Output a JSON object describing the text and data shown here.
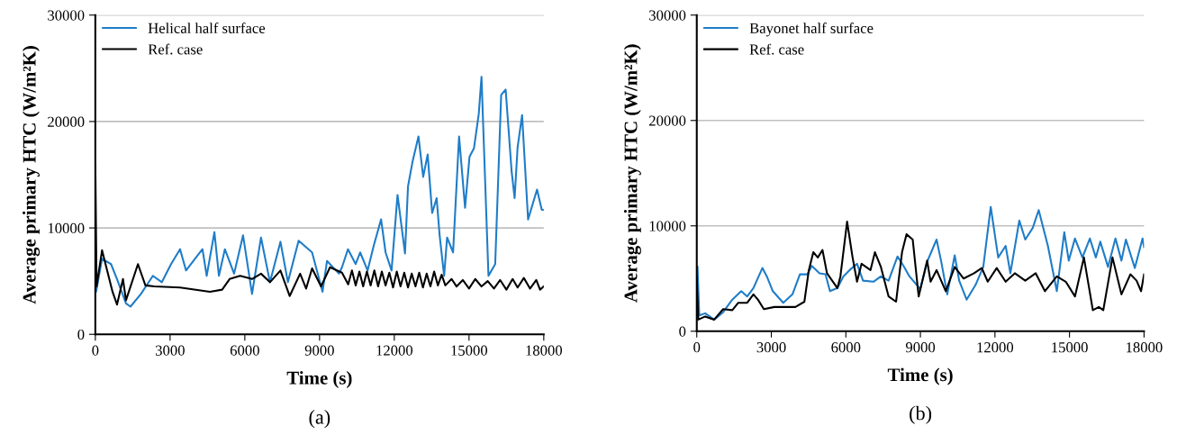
{
  "chart_data": [
    {
      "type": "line",
      "xlabel": "Time (s)",
      "ylabel": "Average primary HTC (W/m²K)",
      "annotations": [
        "(a)"
      ],
      "xlim": [
        0,
        18000
      ],
      "ylim": [
        0,
        30000
      ],
      "xticks": [
        0,
        3000,
        6000,
        9000,
        12000,
        15000,
        18000
      ],
      "yticks": [
        0,
        10000,
        20000,
        30000
      ],
      "grid": "y",
      "legend": "top left",
      "series": [
        {
          "name": "Helical half surface",
          "color": "#1f7dc8",
          "x": [
            0,
            30,
            270,
            630,
            870,
            1230,
            1410,
            1830,
            2310,
            2670,
            3040,
            3400,
            3640,
            4000,
            4300,
            4470,
            4780,
            4960,
            5200,
            5570,
            5930,
            6290,
            6650,
            7010,
            7430,
            7730,
            8160,
            8700,
            9120,
            9300,
            9780,
            9900,
            10140,
            10450,
            10630,
            10930,
            11170,
            11470,
            11650,
            11890,
            12130,
            12430,
            12550,
            12730,
            12970,
            13160,
            13340,
            13520,
            13700,
            13820,
            14000,
            14120,
            14360,
            14600,
            14840,
            15020,
            15200,
            15390,
            15500,
            15780,
            16050,
            16290,
            16470,
            16710,
            16830,
            16950,
            17130,
            17370,
            17730,
            17920,
            18000
          ],
          "values": [
            5000,
            4000,
            7100,
            6600,
            5200,
            2900,
            2600,
            3800,
            5500,
            4900,
            6600,
            8000,
            6000,
            7100,
            8000,
            5500,
            9600,
            5500,
            8000,
            5700,
            9300,
            3800,
            9100,
            4900,
            8700,
            4900,
            8800,
            7700,
            4000,
            6900,
            5700,
            6300,
            8000,
            6600,
            7700,
            6000,
            8300,
            10800,
            7700,
            6000,
            13100,
            7600,
            13900,
            16200,
            18600,
            14800,
            16900,
            11400,
            12800,
            9300,
            5500,
            9100,
            7700,
            18600,
            11900,
            16700,
            17500,
            20700,
            24200,
            5500,
            6600,
            22500,
            23000,
            15300,
            12800,
            17600,
            20600,
            10800,
            13600,
            11700,
            11700
          ]
        },
        {
          "name": "Ref. case",
          "color": "#000000",
          "x": [
            0,
            50,
            270,
            690,
            870,
            1110,
            1230,
            1710,
            2010,
            2370,
            3400,
            4600,
            5090,
            5390,
            5810,
            6290,
            6650,
            7010,
            7430,
            7800,
            8220,
            8460,
            8700,
            9060,
            9420,
            9900,
            10150,
            10300,
            10450,
            10600,
            10750,
            10900,
            11050,
            11200,
            11350,
            11500,
            11650,
            11800,
            11950,
            12100,
            12250,
            12400,
            12550,
            12700,
            12850,
            13000,
            13150,
            13300,
            13450,
            13600,
            13750,
            13900,
            14050,
            14300,
            14500,
            14750,
            15000,
            15250,
            15500,
            15750,
            16000,
            16250,
            16500,
            16750,
            16950,
            17200,
            17450,
            17700,
            17850,
            18000
          ],
          "values": [
            16000,
            4500,
            7900,
            4000,
            2800,
            5200,
            3200,
            6600,
            4600,
            4500,
            4400,
            4000,
            4200,
            5200,
            5500,
            5200,
            5700,
            4900,
            6000,
            3600,
            5700,
            4300,
            6200,
            4500,
            6300,
            5800,
            4700,
            6000,
            4600,
            5900,
            4500,
            5900,
            4600,
            6000,
            4500,
            5900,
            4600,
            5800,
            4400,
            5900,
            4500,
            5800,
            4400,
            5700,
            4500,
            5800,
            4400,
            5700,
            4500,
            5900,
            4600,
            5600,
            4600,
            5200,
            4500,
            5100,
            4300,
            5200,
            4500,
            5000,
            4300,
            5100,
            4200,
            5200,
            4400,
            5300,
            4300,
            5100,
            4200,
            4500
          ]
        }
      ]
    },
    {
      "type": "line",
      "xlabel": "Time (s)",
      "ylabel": "Average primary HTC (W/m²K)",
      "annotations": [
        "(b)"
      ],
      "xlim": [
        0,
        18000
      ],
      "ylim": [
        0,
        30000
      ],
      "xticks": [
        0,
        3000,
        6000,
        9000,
        12000,
        15000,
        18000
      ],
      "yticks": [
        0,
        10000,
        20000,
        30000
      ],
      "grid": "y",
      "legend": "top left",
      "series": [
        {
          "name": "Bayonet half surface",
          "color": "#1f7dc8",
          "x": [
            30,
            100,
            340,
            700,
            1060,
            1430,
            1790,
            2030,
            2280,
            2640,
            2820,
            3060,
            3480,
            3850,
            4150,
            4450,
            4630,
            4940,
            5180,
            5360,
            5660,
            5900,
            6150,
            6450,
            6690,
            7110,
            7410,
            7720,
            8080,
            8320,
            8560,
            8990,
            9290,
            9650,
            9830,
            10080,
            10380,
            10560,
            10860,
            11220,
            11530,
            11830,
            12130,
            12430,
            12620,
            12980,
            13220,
            13520,
            13760,
            14130,
            14490,
            14790,
            14970,
            15220,
            15520,
            15820,
            16060,
            16240,
            16550,
            16850,
            17090,
            17270,
            17630,
            17940,
            18000
          ],
          "values": [
            6100,
            1500,
            1700,
            1100,
            1800,
            3000,
            3800,
            3300,
            4100,
            6000,
            5200,
            3800,
            2700,
            3500,
            5400,
            5400,
            6200,
            5500,
            5400,
            3800,
            4100,
            5200,
            5800,
            6400,
            4800,
            4700,
            5200,
            4800,
            7100,
            6200,
            5200,
            4000,
            6700,
            8700,
            6700,
            3500,
            7200,
            4800,
            3000,
            4400,
            6100,
            11800,
            7000,
            8100,
            5500,
            10500,
            8700,
            9800,
            11500,
            8100,
            3800,
            9400,
            6700,
            8800,
            7000,
            8800,
            7000,
            8500,
            6100,
            8800,
            6700,
            8700,
            6000,
            8800,
            8000
          ]
        },
        {
          "name": "Ref. case",
          "color": "#000000",
          "x": [
            0,
            60,
            340,
            700,
            1060,
            1430,
            1670,
            2030,
            2280,
            2460,
            2700,
            3120,
            3970,
            4330,
            4510,
            4690,
            4870,
            5060,
            5240,
            5480,
            5660,
            5780,
            6050,
            6270,
            6450,
            6630,
            6990,
            7170,
            7410,
            7720,
            8020,
            8260,
            8440,
            8690,
            8930,
            9270,
            9410,
            9650,
            10020,
            10380,
            10740,
            11160,
            11470,
            11710,
            12070,
            12430,
            12800,
            13220,
            13640,
            14010,
            14490,
            14850,
            15220,
            15580,
            15940,
            16180,
            16360,
            16730,
            17090,
            17450,
            17700,
            17880,
            18000
          ],
          "values": [
            5000,
            1100,
            1400,
            1100,
            2100,
            2000,
            2700,
            2700,
            3500,
            3000,
            2100,
            2300,
            2300,
            2800,
            5800,
            7500,
            7000,
            7700,
            5500,
            4700,
            4100,
            5200,
            10400,
            7000,
            4700,
            6400,
            5800,
            7500,
            6100,
            3300,
            2800,
            7500,
            9200,
            8700,
            3300,
            6700,
            4700,
            5800,
            3800,
            6100,
            5000,
            5500,
            6000,
            4700,
            6000,
            4700,
            5500,
            4800,
            5500,
            3800,
            5200,
            4700,
            3300,
            7000,
            2000,
            2300,
            2000,
            7000,
            3500,
            5400,
            4800,
            3800,
            5400
          ]
        }
      ]
    }
  ]
}
